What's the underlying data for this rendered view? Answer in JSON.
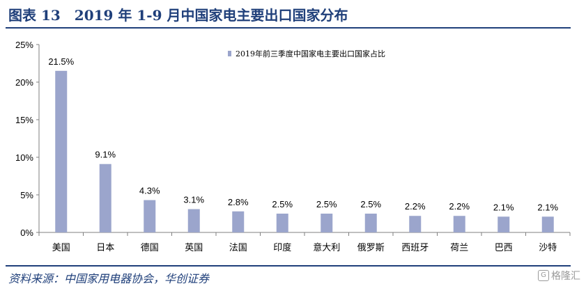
{
  "figure": {
    "title": "图表 13　2019 年 1-9 月中国家电主要出口国家分布",
    "source": "资料来源：中国家用电器协会，华创证券",
    "watermark": "格隆汇",
    "watermark_icon": "G"
  },
  "colors": {
    "bar": "#9ba5cc",
    "title": "#1f3f7a",
    "axis": "#7f7f7f"
  },
  "chart_data": {
    "type": "bar",
    "title": "",
    "xlabel": "",
    "ylabel": "",
    "categories": [
      "美国",
      "日本",
      "德国",
      "英国",
      "法国",
      "印度",
      "意大利",
      "俄罗斯",
      "西班牙",
      "荷兰",
      "巴西",
      "沙特"
    ],
    "series": [
      {
        "name": "2019年前三季度中国家电主要出口国家占比",
        "values": [
          21.5,
          9.1,
          4.3,
          3.1,
          2.8,
          2.5,
          2.5,
          2.5,
          2.2,
          2.2,
          2.1,
          2.1
        ]
      }
    ],
    "data_labels": [
      "21.5%",
      "9.1%",
      "4.3%",
      "3.1%",
      "2.8%",
      "2.5%",
      "2.5%",
      "2.5%",
      "2.2%",
      "2.2%",
      "2.1%",
      "2.1%"
    ],
    "ylim": [
      0,
      25
    ],
    "yticks": [
      0,
      5,
      10,
      15,
      20,
      25
    ],
    "ytick_labels": [
      "0%",
      "5%",
      "10%",
      "15%",
      "20%",
      "25%"
    ],
    "grid": false,
    "legend_position": "top-right"
  }
}
